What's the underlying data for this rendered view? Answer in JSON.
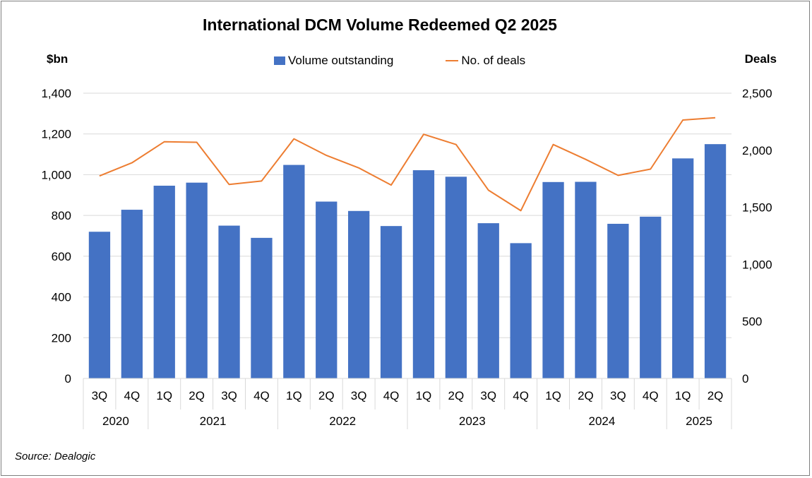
{
  "chart_data": {
    "type": "bar",
    "title": "International DCM Volume Redeemed Q2 2025",
    "ylabel": "$bn",
    "y2label": "Deals",
    "ylim": [
      0,
      1400
    ],
    "y2lim": [
      0,
      2500
    ],
    "yticks": [
      "0",
      "200",
      "400",
      "600",
      "800",
      "1,000",
      "1,200",
      "1,400"
    ],
    "y2ticks": [
      "0",
      "500",
      "1,000",
      "1,500",
      "2,000",
      "2,500"
    ],
    "grid": true,
    "legend_position": "top-center",
    "categories": [
      "3Q",
      "4Q",
      "1Q",
      "2Q",
      "3Q",
      "4Q",
      "1Q",
      "2Q",
      "3Q",
      "4Q",
      "1Q",
      "2Q",
      "3Q",
      "4Q",
      "1Q",
      "2Q",
      "3Q",
      "4Q",
      "1Q",
      "2Q"
    ],
    "years": [
      {
        "label": "2020",
        "span": 2
      },
      {
        "label": "2021",
        "span": 4
      },
      {
        "label": "2022",
        "span": 4
      },
      {
        "label": "2023",
        "span": 4
      },
      {
        "label": "2024",
        "span": 4
      },
      {
        "label": "2025",
        "span": 2
      }
    ],
    "series": [
      {
        "name": "Volume outstanding",
        "type": "bar",
        "axis": "left",
        "color": "#4472c4",
        "values": [
          720,
          828,
          946,
          961,
          750,
          690,
          1048,
          868,
          822,
          748,
          1022,
          990,
          762,
          664,
          964,
          965,
          759,
          794,
          1080,
          1150
        ]
      },
      {
        "name": "No. of deals",
        "type": "line",
        "axis": "right",
        "color": "#ed7d31",
        "values": [
          1775,
          1890,
          2075,
          2070,
          1700,
          1730,
          2100,
          1955,
          1845,
          1695,
          2140,
          2050,
          1650,
          1470,
          2050,
          1920,
          1780,
          1835,
          2265,
          2285
        ]
      }
    ]
  },
  "footer": {
    "source": "Source: Dealogic"
  }
}
